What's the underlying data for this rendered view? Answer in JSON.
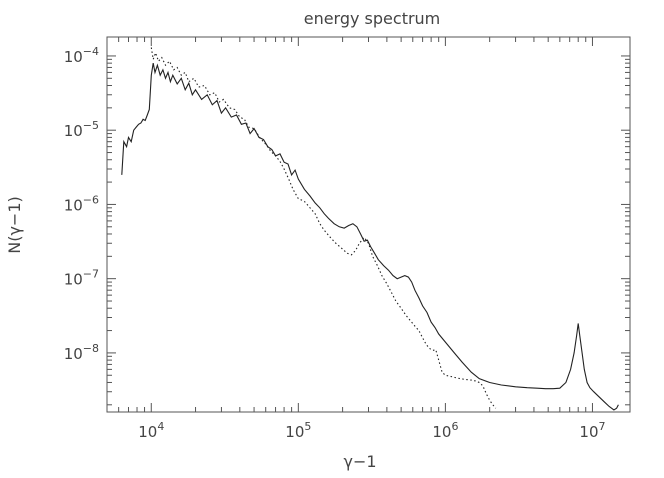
{
  "chart_data": {
    "type": "line",
    "title": "energy spectrum",
    "xlabel": "γ−1",
    "ylabel": "N(γ−1)",
    "xscale": "log",
    "yscale": "log",
    "xlim": [
      5000,
      18000000
    ],
    "ylim": [
      1.6e-09,
      0.00018
    ],
    "grid": false,
    "x_ticks": [
      {
        "value": 10000,
        "base": "10",
        "exp": "4"
      },
      {
        "value": 100000,
        "base": "10",
        "exp": "5"
      },
      {
        "value": 1000000,
        "base": "10",
        "exp": "6"
      },
      {
        "value": 10000000,
        "base": "10",
        "exp": "7"
      }
    ],
    "y_ticks": [
      {
        "value": 0.0001,
        "base": "10",
        "exp": "−4"
      },
      {
        "value": 1e-05,
        "base": "10",
        "exp": "−5"
      },
      {
        "value": 1e-06,
        "base": "10",
        "exp": "−6"
      },
      {
        "value": 1e-07,
        "base": "10",
        "exp": "−7"
      },
      {
        "value": 1e-08,
        "base": "10",
        "exp": "−8"
      }
    ],
    "series": [
      {
        "style": "solid",
        "color": "#222222",
        "x": [
          6300,
          6500,
          6800,
          7000,
          7300,
          7600,
          7900,
          8200,
          8500,
          8800,
          9100,
          9400,
          9700,
          10000,
          10300,
          10600,
          11000,
          11500,
          12000,
          12500,
          13000,
          13500,
          14000,
          15000,
          16000,
          17000,
          18000,
          19000,
          20000,
          22000,
          24000,
          26000,
          28000,
          30000,
          32000,
          35000,
          38000,
          41000,
          44000,
          47000,
          50000,
          54000,
          58000,
          62000,
          66000,
          70000,
          75000,
          80000,
          85000,
          90000,
          95000,
          100000,
          110000,
          120000,
          130000,
          140000,
          150000,
          160000,
          175000,
          190000,
          205000,
          220000,
          235000,
          250000,
          265000,
          280000,
          295000,
          310000,
          330000,
          350000,
          380000,
          410000,
          440000,
          470000,
          500000,
          530000,
          560000,
          590000,
          620000,
          660000,
          700000,
          750000,
          800000,
          850000,
          900000,
          1000000,
          1150000,
          1300000,
          1500000,
          1700000,
          2000000,
          2400000,
          3000000,
          3600000,
          4200000,
          4800000,
          5400000,
          6000000,
          6600000,
          7100000,
          7500000,
          7800000,
          8000000,
          8200000,
          8500000,
          8800000,
          9200000,
          9600000,
          10200000,
          11000000,
          12000000,
          13000000,
          14000000,
          14600000,
          15000000
        ],
        "y": [
          2.5e-06,
          7e-06,
          6e-06,
          8e-06,
          7e-06,
          1e-05,
          1.1e-05,
          1.2e-05,
          1.25e-05,
          1.4e-05,
          1.35e-05,
          1.6e-05,
          1.9e-05,
          5.5e-05,
          8e-05,
          6e-05,
          7.5e-05,
          5.5e-05,
          6.5e-05,
          5e-05,
          6e-05,
          4.5e-05,
          5.5e-05,
          4.2e-05,
          5e-05,
          3.5e-05,
          4.3e-05,
          3e-05,
          3.5e-05,
          2.6e-05,
          3e-05,
          2.2e-05,
          2.5e-05,
          1.7e-05,
          2e-05,
          1.5e-05,
          1.6e-05,
          1.2e-05,
          1.25e-05,
          9e-06,
          1.05e-05,
          8e-06,
          7.5e-06,
          6e-06,
          5.5e-06,
          4.5e-06,
          4.8e-06,
          3.7e-06,
          3.5e-06,
          2.5e-06,
          2.9e-06,
          2.2e-06,
          1.6e-06,
          1.3e-06,
          1.05e-06,
          9e-07,
          7.5e-07,
          6.5e-07,
          5.5e-07,
          5e-07,
          4.8e-07,
          5.2e-07,
          5.5e-07,
          5e-07,
          4e-07,
          3.2e-07,
          3.3e-07,
          2.7e-07,
          2.2e-07,
          1.8e-07,
          1.5e-07,
          1.3e-07,
          1.1e-07,
          1e-07,
          1.05e-07,
          1.1e-07,
          1.05e-07,
          9e-08,
          7e-08,
          5.5e-08,
          4.3e-08,
          3.5e-08,
          2.6e-08,
          2.2e-08,
          1.8e-08,
          1.4e-08,
          1e-08,
          7.5e-09,
          5.5e-09,
          4.5e-09,
          4e-09,
          3.7e-09,
          3.5e-09,
          3.4e-09,
          3.35e-09,
          3.3e-09,
          3.3e-09,
          3.35e-09,
          4e-09,
          6e-09,
          1e-08,
          1.7e-08,
          2.5e-08,
          1.7e-08,
          1e-08,
          6e-09,
          4e-09,
          3.4e-09,
          3e-09,
          2.6e-09,
          2.2e-09,
          1.9e-09,
          1.7e-09,
          1.8e-09,
          2e-09
        ]
      },
      {
        "style": "dotted",
        "color": "#222222",
        "x": [
          10000,
          10300,
          10700,
          11200,
          11800,
          12500,
          13300,
          14200,
          15000,
          16000,
          17000,
          18000,
          19500,
          21000,
          23000,
          25000,
          27000,
          29000,
          31000,
          34000,
          37000,
          40000,
          43000,
          46000,
          50000,
          55000,
          60000,
          65000,
          70000,
          75000,
          80000,
          86000,
          92000,
          100000,
          110000,
          120000,
          130000,
          140000,
          150000,
          165000,
          180000,
          200000,
          215000,
          230000,
          245000,
          260000,
          280000,
          300000,
          320000,
          345000,
          370000,
          400000,
          430000,
          460000,
          500000,
          540000,
          580000,
          620000,
          660000,
          700000,
          740000,
          780000,
          820000,
          860000,
          900000,
          950000,
          1000000,
          1100000,
          1200000,
          1350000,
          1500000,
          1600000,
          1700000,
          1800000,
          1900000,
          2000000,
          2100000,
          2200000
        ],
        "y": [
          0.00013,
          9e-05,
          0.00011,
          8.5e-05,
          9.5e-05,
          7.5e-05,
          8.5e-05,
          6.5e-05,
          7e-05,
          5.5e-05,
          6e-05,
          4.5e-05,
          5e-05,
          3.8e-05,
          4e-05,
          3e-05,
          3.2e-05,
          2.4e-05,
          2.6e-05,
          2e-05,
          1.9e-05,
          1.5e-05,
          1.4e-05,
          1.1e-05,
          1.05e-05,
          7.8e-06,
          6.5e-06,
          5.2e-06,
          4.5e-06,
          3.8e-06,
          3e-06,
          2.2e-06,
          1.6e-06,
          1.2e-06,
          1.1e-06,
          9e-07,
          7.5e-07,
          5.5e-07,
          4.5e-07,
          3.6e-07,
          3e-07,
          2.5e-07,
          2.2e-07,
          2.1e-07,
          2.4e-07,
          3e-07,
          3.6e-07,
          3e-07,
          2e-07,
          1.5e-07,
          1.1e-07,
          8.5e-08,
          6.5e-08,
          5e-08,
          4e-08,
          3.2e-08,
          2.7e-08,
          2.3e-08,
          2e-08,
          1.6e-08,
          1.3e-08,
          1.15e-08,
          1.08e-08,
          1.1e-08,
          8e-09,
          5.5e-09,
          5e-09,
          4.8e-09,
          4.6e-09,
          4.4e-09,
          4.3e-09,
          4.2e-09,
          4e-09,
          3.6e-09,
          2.8e-09,
          2.3e-09,
          2e-09,
          1.8e-09
        ]
      }
    ]
  }
}
